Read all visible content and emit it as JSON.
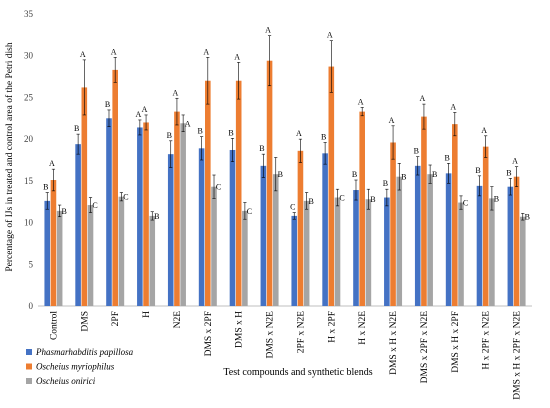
{
  "chart_data": {
    "type": "bar",
    "ylabel": "Percentage of IJs in treated and control area of the Petri dish",
    "xlabel": "Test compounds and synthetic blends",
    "ylim": [
      0,
      35
    ],
    "yticks": [
      0,
      5,
      10,
      15,
      20,
      25,
      30,
      35
    ],
    "grid": false,
    "legend_position": "bottom-left",
    "categories": [
      "Control",
      "DMS",
      "2PF",
      "H",
      "N2E",
      "DMS x 2PF",
      "DMS x H",
      "DMS x N2E",
      "2PF x N2E",
      "H x 2PF",
      "H x N2E",
      "DMS x H x N2E",
      "DMS x 2PF x N2E",
      "DMS x H x 2PF",
      "H x 2PF x N2E",
      "DMS x H x 2PF x N2E"
    ],
    "series": [
      {
        "name": "Phasmarhabditis papillosa",
        "color": "#4472C4",
        "values": [
          12.6,
          19.4,
          22.5,
          21.4,
          18.2,
          18.9,
          18.7,
          16.8,
          10.8,
          18.3,
          13.9,
          13.0,
          16.8,
          15.9,
          14.4,
          14.3
        ],
        "errors": [
          1.0,
          1.2,
          1.0,
          0.9,
          1.6,
          1.4,
          1.4,
          1.4,
          0.4,
          1.3,
          1.2,
          1.0,
          1.1,
          1.2,
          1.2,
          1.0
        ],
        "letters": [
          "B",
          "B",
          "B",
          "A",
          "B",
          "B",
          "B",
          "B",
          "C",
          "B",
          "B",
          "B",
          "B",
          "B",
          "B",
          "B"
        ]
      },
      {
        "name": "Oscheius myriophilus",
        "color": "#ED7D31",
        "values": [
          15.1,
          26.2,
          28.3,
          22.0,
          23.3,
          27.0,
          27.0,
          29.4,
          18.6,
          28.7,
          23.3,
          19.6,
          22.7,
          21.8,
          19.1,
          15.5
        ],
        "errors": [
          1.3,
          3.3,
          1.5,
          0.9,
          1.6,
          2.8,
          2.2,
          3.0,
          1.4,
          3.1,
          0.5,
          2.0,
          1.5,
          1.4,
          1.3,
          1.2
        ],
        "letters": [
          "A",
          "A",
          "A",
          "A",
          "A",
          "A",
          "A",
          "A",
          "A",
          "A",
          "A",
          "A",
          "A",
          "A",
          "A",
          "A"
        ]
      },
      {
        "name": "Oscheius onirici",
        "color": "#A5A5A5",
        "values": [
          11.4,
          12.1,
          13.1,
          10.8,
          21.9,
          14.3,
          11.4,
          15.8,
          12.6,
          13.0,
          12.8,
          15.5,
          15.8,
          12.4,
          12.9,
          10.7
        ],
        "errors": [
          0.7,
          0.9,
          0.5,
          0.5,
          1.0,
          1.4,
          1.0,
          2.0,
          1.0,
          1.0,
          1.2,
          1.6,
          1.1,
          0.8,
          1.4,
          0.4
        ],
        "letters": [
          "B",
          "C",
          "C",
          "B",
          "A",
          "C",
          "C",
          "B",
          "B",
          "C",
          "B",
          "B",
          "B",
          "C",
          "B",
          "B"
        ]
      }
    ]
  }
}
